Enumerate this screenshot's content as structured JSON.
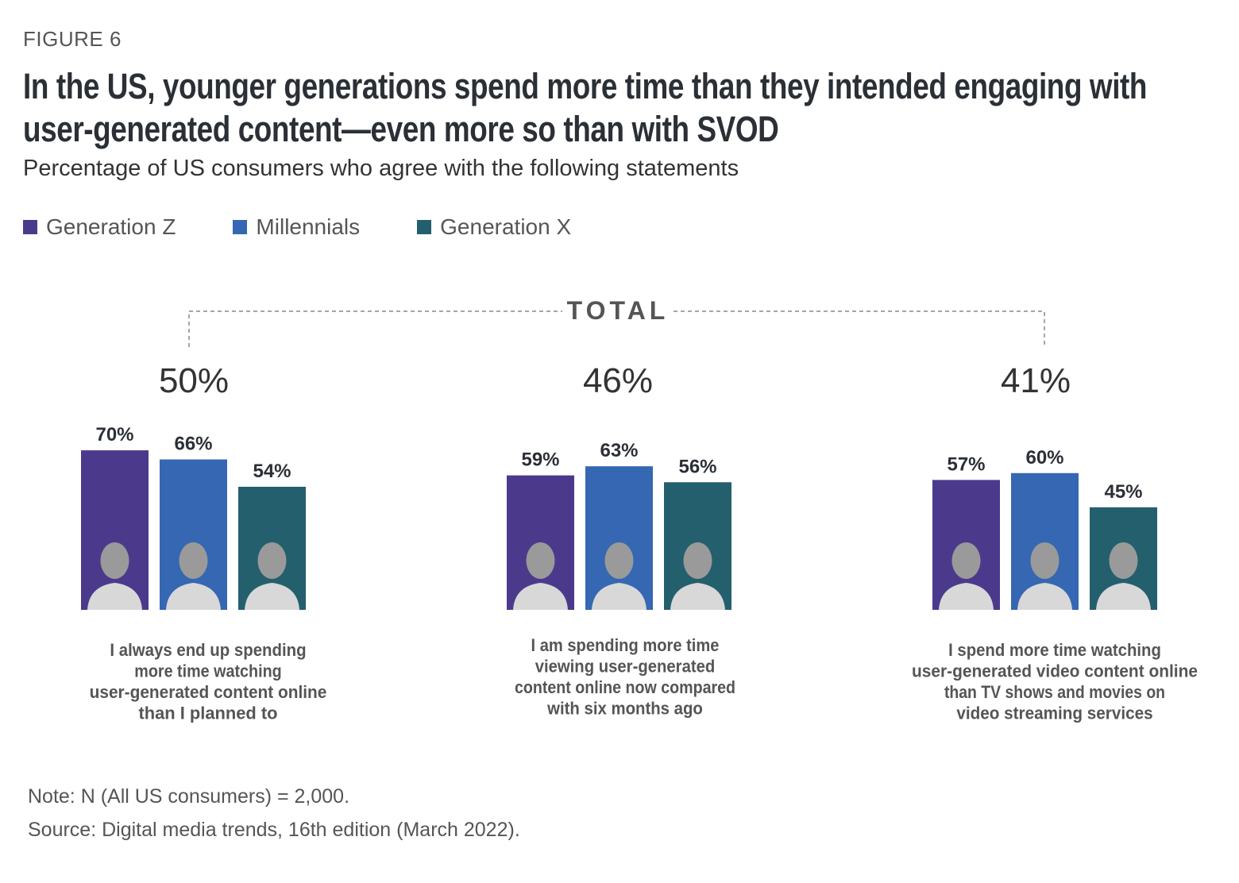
{
  "figure_label": "FIGURE 6",
  "chart_data": {
    "type": "bar",
    "title": "In the US, younger generations spend more time than they intended engaging with user-generated content—even more so than with SVOD",
    "subtitle": "Percentage of US consumers who agree with the following statements",
    "total_label": "TOTAL",
    "series": [
      {
        "name": "Generation Z",
        "color": "#4b3a8c",
        "values": [
          70,
          59,
          57
        ]
      },
      {
        "name": "Millennials",
        "color": "#3567b2",
        "values": [
          66,
          63,
          60
        ]
      },
      {
        "name": "Generation X",
        "color": "#245f6e",
        "values": [
          54,
          56,
          45
        ]
      }
    ],
    "totals": [
      50,
      46,
      41
    ],
    "categories": [
      [
        "I always end up spending",
        "more time watching",
        "user-generated content online",
        "than I planned to"
      ],
      [
        "I am spending more time",
        "viewing user-generated",
        "content online now compared",
        "with six months ago"
      ],
      [
        "I spend more time watching",
        "user-generated video content online",
        "than TV shows and movies on",
        "video streaming services"
      ]
    ],
    "unit": "%",
    "ylim": [
      0,
      100
    ]
  },
  "notes": {
    "note": "Note: N (All US consumers) = 2,000.",
    "source": "Source: Digital media trends, 16th edition (March 2022)."
  }
}
